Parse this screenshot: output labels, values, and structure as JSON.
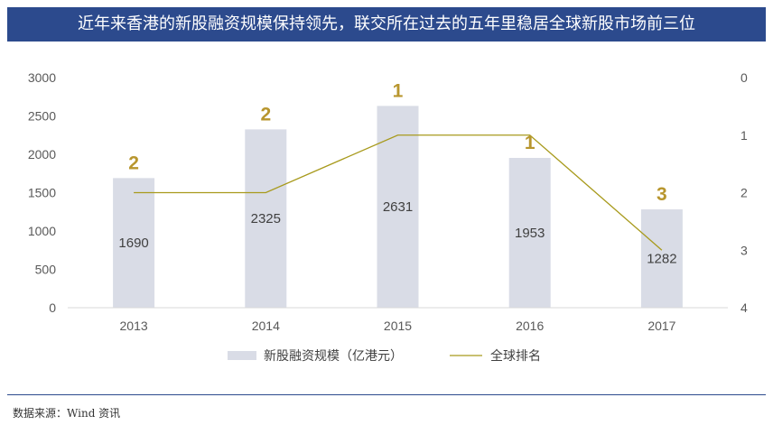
{
  "title": "近年来香港的新股融资规模保持领先，联交所在过去的五年里稳居全球新股市场前三位",
  "source": "数据来源：Wind 资讯",
  "colors": {
    "title_bg": "#2c4a8d",
    "bar": "#d9dce6",
    "line": "#a89a1c",
    "rank_label": "#b8962e"
  },
  "chart_data": {
    "type": "bar",
    "categories": [
      "2013",
      "2014",
      "2015",
      "2016",
      "2017"
    ],
    "series": [
      {
        "name": "新股融资规模（亿港元）",
        "type": "bar",
        "axis": "left",
        "values": [
          1690,
          2325,
          2631,
          1953,
          1282
        ]
      },
      {
        "name": "全球排名",
        "type": "line",
        "axis": "right",
        "values": [
          2,
          2,
          1,
          1,
          3
        ]
      }
    ],
    "y_left": {
      "lim": [
        0,
        3000
      ],
      "ticks": [
        "0",
        "500",
        "1000",
        "1500",
        "2000",
        "2500",
        "3000"
      ]
    },
    "y_right": {
      "lim": [
        0,
        4
      ],
      "inverted": true,
      "ticks": [
        "0",
        "1",
        "2",
        "3",
        "4"
      ]
    },
    "grid": false,
    "legend_position": "bottom"
  }
}
